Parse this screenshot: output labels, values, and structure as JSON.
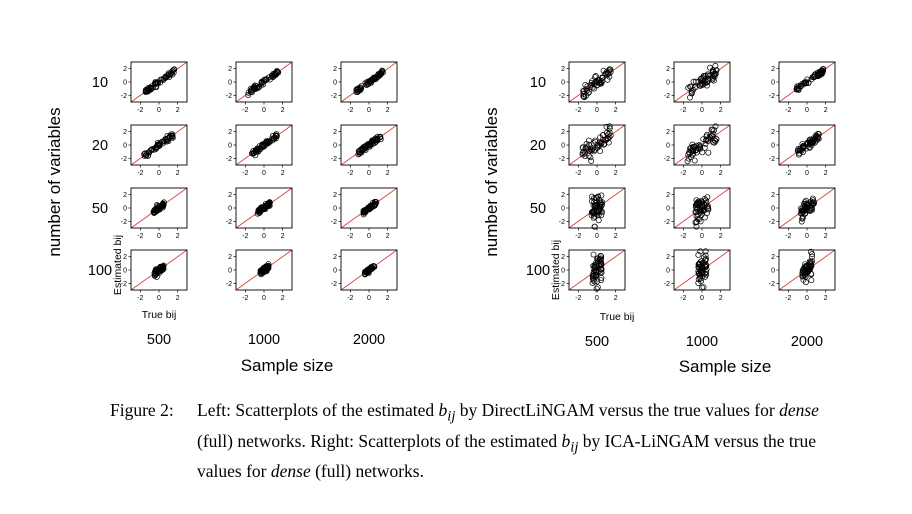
{
  "figure": {
    "panels": [
      {
        "side": "left",
        "method": "DirectLiNGAM",
        "ylabel": "number of variables",
        "xlabel": "Sample size",
        "row_labels": [
          "10",
          "20",
          "50",
          "100"
        ],
        "col_labels": [
          "500",
          "1000",
          "2000"
        ],
        "inner_ylabel": "Estimated bij",
        "inner_xlabel": "True bij",
        "tick_labels": [
          "-2",
          "0",
          "2"
        ]
      },
      {
        "side": "right",
        "method": "ICA-LiNGAM",
        "ylabel": "number of variables",
        "xlabel": "Sample size",
        "row_labels": [
          "10",
          "20",
          "50",
          "100"
        ],
        "col_labels": [
          "500",
          "1000",
          "2000"
        ],
        "inner_ylabel": "Estimated bij",
        "inner_xlabel": "True bij",
        "tick_labels": [
          "-2",
          "0",
          "2"
        ]
      }
    ]
  },
  "chart_data": [
    {
      "type": "scatter",
      "panel": "left",
      "x_range": [
        -3,
        3
      ],
      "y_range": [
        -3,
        3
      ],
      "ticks": [
        -2,
        0,
        2
      ],
      "reference_line": "y = x",
      "reference_line_color": "#d9443a",
      "marker": "open circle",
      "grid": [
        [
          {
            "x_range": [
              -1.5,
              1.8
            ],
            "scatter_sd": 0.18
          },
          {
            "x_range": [
              -1.8,
              1.6
            ],
            "scatter_sd": 0.18
          },
          {
            "x_range": [
              -1.4,
              1.6
            ],
            "scatter_sd": 0.2
          }
        ],
        [
          {
            "x_range": [
              -1.6,
              1.5
            ],
            "scatter_sd": 0.2
          },
          {
            "x_range": [
              -1.3,
              1.4
            ],
            "scatter_sd": 0.18
          },
          {
            "x_range": [
              -1.2,
              1.3
            ],
            "scatter_sd": 0.15
          }
        ],
        [
          {
            "x_range": [
              -0.6,
              0.6
            ],
            "scatter_sd": 0.2
          },
          {
            "x_range": [
              -0.7,
              0.7
            ],
            "scatter_sd": 0.18
          },
          {
            "x_range": [
              -0.6,
              0.8
            ],
            "scatter_sd": 0.15
          }
        ],
        [
          {
            "x_range": [
              -0.5,
              0.5
            ],
            "scatter_sd": 0.2
          },
          {
            "x_range": [
              -0.4,
              0.5
            ],
            "scatter_sd": 0.2
          },
          {
            "x_range": [
              -0.5,
              0.6
            ],
            "scatter_sd": 0.15
          }
        ]
      ]
    },
    {
      "type": "scatter",
      "panel": "right",
      "x_range": [
        -3,
        3
      ],
      "y_range": [
        -3,
        3
      ],
      "ticks": [
        -2,
        0,
        2
      ],
      "reference_line": "y = x",
      "reference_line_color": "#d9443a",
      "marker": "open circle",
      "grid": [
        [
          {
            "x_range": [
              -1.5,
              1.5
            ],
            "scatter_sd": 0.55
          },
          {
            "x_range": [
              -1.5,
              1.6
            ],
            "scatter_sd": 0.55
          },
          {
            "x_range": [
              -1.2,
              1.8
            ],
            "scatter_sd": 0.2
          }
        ],
        [
          {
            "x_range": [
              -1.6,
              1.6
            ],
            "scatter_sd": 0.8
          },
          {
            "x_range": [
              -1.6,
              1.6
            ],
            "scatter_sd": 0.7
          },
          {
            "x_range": [
              -1.0,
              1.3
            ],
            "scatter_sd": 0.3
          }
        ],
        [
          {
            "x_range": [
              -0.6,
              0.6
            ],
            "scatter_sd": 1.0
          },
          {
            "x_range": [
              -0.7,
              0.7
            ],
            "scatter_sd": 0.85
          },
          {
            "x_range": [
              -0.7,
              0.8
            ],
            "scatter_sd": 0.5
          }
        ],
        [
          {
            "x_range": [
              -0.5,
              0.5
            ],
            "scatter_sd": 1.2
          },
          {
            "x_range": [
              -0.5,
              0.5
            ],
            "scatter_sd": 1.1
          },
          {
            "x_range": [
              -0.5,
              0.6
            ],
            "scatter_sd": 0.8
          }
        ]
      ]
    }
  ],
  "caption": {
    "label": "Figure 2:",
    "part1": "Left: Scatterplots of the estimated ",
    "bvar": "b",
    "bsub": "ij",
    "part2": " by DirectLiNGAM versus the true values for ",
    "dense": "dense",
    "line2a": "(full) networks. Right: Scatterplots of the estimated ",
    "part3": " by ICA-LiNGAM versus the true",
    "line3a": "values for ",
    "part4": " (full) networks."
  }
}
